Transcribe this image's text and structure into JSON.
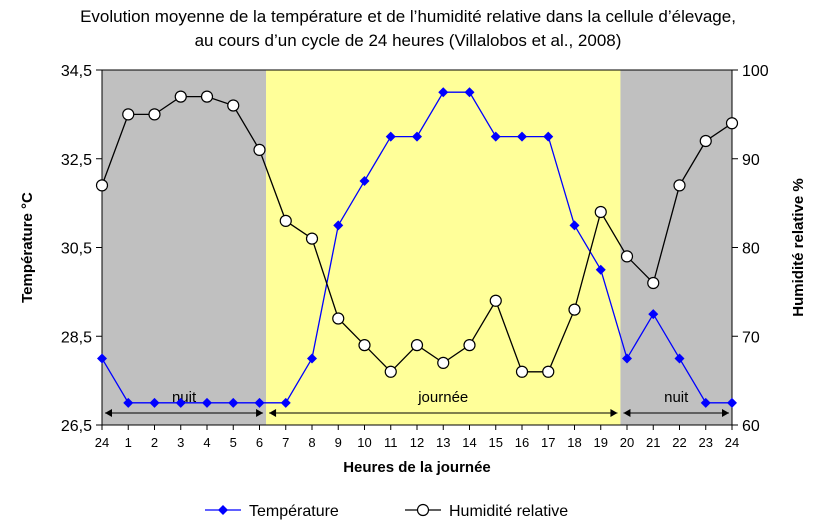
{
  "chart_data": {
    "type": "line",
    "title_line1": "Evolution moyenne de la température et de l’humidité relative dans la cellule d’élevage,",
    "title_line2": "au cours d’un cycle de 24 heures (Villalobos et al., 2008)",
    "xlabel": "Heures de la journée",
    "ylabel_left": "Température °C",
    "ylabel_right": "Humidité relative %",
    "categories": [
      "24",
      "1",
      "2",
      "3",
      "4",
      "5",
      "6",
      "7",
      "8",
      "9",
      "10",
      "11",
      "12",
      "13",
      "14",
      "15",
      "16",
      "17",
      "18",
      "19",
      "20",
      "21",
      "22",
      "23",
      "24"
    ],
    "y_left_ticks": [
      "26,5",
      "28,5",
      "30,5",
      "32,5",
      "34,5"
    ],
    "y_left_range": [
      26.5,
      34.5
    ],
    "y_right_ticks": [
      "60",
      "70",
      "80",
      "90",
      "100"
    ],
    "y_right_range": [
      60,
      100
    ],
    "series": [
      {
        "name": "Température",
        "axis": "left",
        "color": "#0000ff",
        "marker": "diamond",
        "values": [
          28.0,
          27.0,
          27.0,
          27.0,
          27.0,
          27.0,
          27.0,
          27.0,
          28.0,
          31.0,
          32.0,
          33.0,
          33.0,
          34.0,
          34.0,
          33.0,
          33.0,
          33.0,
          31.0,
          30.0,
          28.0,
          29.0,
          28.0,
          27.0,
          27.0
        ]
      },
      {
        "name": "Humidité relative",
        "axis": "right",
        "color": "#000000",
        "marker": "circle",
        "values": [
          87,
          95,
          95,
          97,
          97,
          96,
          91,
          83,
          81,
          72,
          69,
          66,
          69,
          67,
          69,
          74,
          66,
          66,
          73,
          84,
          79,
          76,
          87,
          92,
          94
        ]
      }
    ],
    "periods": [
      {
        "label": "nuit",
        "from_index": 0,
        "to_index": 6.25,
        "shade": "#c0c0c0"
      },
      {
        "label": "journée",
        "from_index": 6.25,
        "to_index": 19.75,
        "shade": "#ffff99"
      },
      {
        "label": "nuit",
        "from_index": 19.75,
        "to_index": 24,
        "shade": "#c0c0c0"
      }
    ],
    "legend_position": "bottom",
    "grid": false
  }
}
